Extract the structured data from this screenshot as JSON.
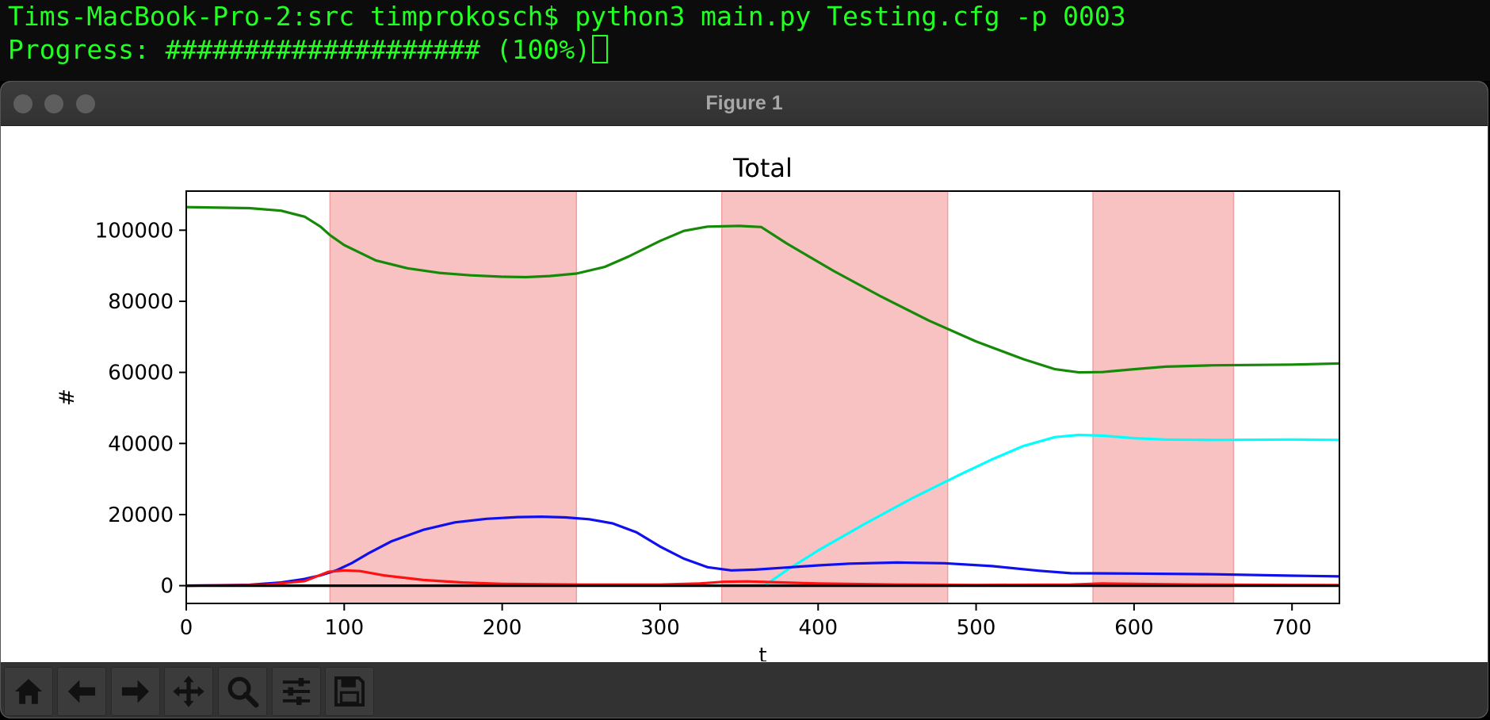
{
  "terminal": {
    "line1": "Tims-MacBook-Pro-2:src timprokosch$ python3 main.py Testing.cfg -p 0003",
    "line2": "Progress: #################### (100%)"
  },
  "window": {
    "title": "Figure 1"
  },
  "toolbar": {
    "buttons": [
      {
        "icon": "home-icon"
      },
      {
        "icon": "back-arrow-icon"
      },
      {
        "icon": "forward-arrow-icon"
      },
      {
        "icon": "pan-icon"
      },
      {
        "icon": "zoom-icon"
      },
      {
        "icon": "configure-subplots-icon"
      },
      {
        "icon": "save-icon"
      }
    ]
  },
  "chart_data": {
    "type": "line",
    "title": "Total",
    "xlabel": "t",
    "ylabel": "#",
    "xlim": [
      0,
      730
    ],
    "ylim": [
      -5000,
      111000
    ],
    "xticks": [
      0,
      100,
      200,
      300,
      400,
      500,
      600,
      700
    ],
    "yticks": [
      0,
      20000,
      40000,
      60000,
      80000,
      100000
    ],
    "grid": false,
    "shaded_regions": [
      {
        "x0": 91,
        "x1": 247,
        "color": "#f8c2c2"
      },
      {
        "x0": 339,
        "x1": 482,
        "color": "#f8c2c2"
      },
      {
        "x0": 574,
        "x1": 663,
        "color": "#f8c2c2"
      }
    ],
    "series": [
      {
        "color": "#168a08",
        "points": [
          [
            0,
            106500
          ],
          [
            40,
            106200
          ],
          [
            60,
            105500
          ],
          [
            75,
            103800
          ],
          [
            85,
            101000
          ],
          [
            91,
            98600
          ],
          [
            100,
            95800
          ],
          [
            120,
            91500
          ],
          [
            140,
            89300
          ],
          [
            160,
            88000
          ],
          [
            180,
            87300
          ],
          [
            200,
            86900
          ],
          [
            215,
            86800
          ],
          [
            230,
            87100
          ],
          [
            247,
            87800
          ],
          [
            265,
            89700
          ],
          [
            280,
            92600
          ],
          [
            300,
            97000
          ],
          [
            315,
            99800
          ],
          [
            330,
            101000
          ],
          [
            350,
            101200
          ],
          [
            364,
            100900
          ],
          [
            380,
            96300
          ],
          [
            410,
            88500
          ],
          [
            440,
            81300
          ],
          [
            470,
            74600
          ],
          [
            500,
            68700
          ],
          [
            530,
            63700
          ],
          [
            550,
            60900
          ],
          [
            565,
            60000
          ],
          [
            580,
            60100
          ],
          [
            600,
            60900
          ],
          [
            620,
            61600
          ],
          [
            650,
            62000
          ],
          [
            680,
            62100
          ],
          [
            700,
            62200
          ],
          [
            730,
            62500
          ]
        ]
      },
      {
        "color": "#00ffff",
        "points": [
          [
            366,
            0
          ],
          [
            380,
            4300
          ],
          [
            400,
            9900
          ],
          [
            430,
            17500
          ],
          [
            460,
            24700
          ],
          [
            490,
            31300
          ],
          [
            510,
            35500
          ],
          [
            530,
            39300
          ],
          [
            550,
            41800
          ],
          [
            565,
            42400
          ],
          [
            580,
            42200
          ],
          [
            600,
            41500
          ],
          [
            620,
            41100
          ],
          [
            650,
            41000
          ],
          [
            700,
            41100
          ],
          [
            730,
            41000
          ]
        ]
      },
      {
        "color": "#1010ee",
        "points": [
          [
            0,
            0
          ],
          [
            40,
            250
          ],
          [
            60,
            900
          ],
          [
            75,
            1900
          ],
          [
            85,
            2900
          ],
          [
            95,
            4300
          ],
          [
            105,
            6400
          ],
          [
            115,
            9000
          ],
          [
            130,
            12500
          ],
          [
            150,
            15700
          ],
          [
            170,
            17800
          ],
          [
            190,
            18800
          ],
          [
            210,
            19300
          ],
          [
            225,
            19400
          ],
          [
            240,
            19200
          ],
          [
            255,
            18700
          ],
          [
            270,
            17500
          ],
          [
            285,
            15000
          ],
          [
            300,
            11000
          ],
          [
            315,
            7600
          ],
          [
            330,
            5200
          ],
          [
            345,
            4300
          ],
          [
            360,
            4500
          ],
          [
            380,
            5100
          ],
          [
            400,
            5700
          ],
          [
            420,
            6200
          ],
          [
            450,
            6500
          ],
          [
            480,
            6300
          ],
          [
            510,
            5500
          ],
          [
            540,
            4200
          ],
          [
            560,
            3500
          ],
          [
            600,
            3400
          ],
          [
            650,
            3200
          ],
          [
            700,
            2800
          ],
          [
            730,
            2600
          ]
        ]
      },
      {
        "color": "#ff1111",
        "points": [
          [
            0,
            0
          ],
          [
            50,
            200
          ],
          [
            75,
            1300
          ],
          [
            90,
            3900
          ],
          [
            100,
            4300
          ],
          [
            110,
            4100
          ],
          [
            125,
            2900
          ],
          [
            150,
            1600
          ],
          [
            175,
            900
          ],
          [
            200,
            500
          ],
          [
            250,
            300
          ],
          [
            300,
            300
          ],
          [
            325,
            600
          ],
          [
            340,
            1100
          ],
          [
            355,
            1200
          ],
          [
            370,
            1000
          ],
          [
            400,
            600
          ],
          [
            450,
            300
          ],
          [
            500,
            200
          ],
          [
            560,
            300
          ],
          [
            580,
            600
          ],
          [
            600,
            500
          ],
          [
            640,
            300
          ],
          [
            700,
            200
          ],
          [
            730,
            150
          ]
        ]
      },
      {
        "color": "#000000",
        "points": [
          [
            0,
            0
          ],
          [
            730,
            0
          ]
        ]
      }
    ]
  }
}
